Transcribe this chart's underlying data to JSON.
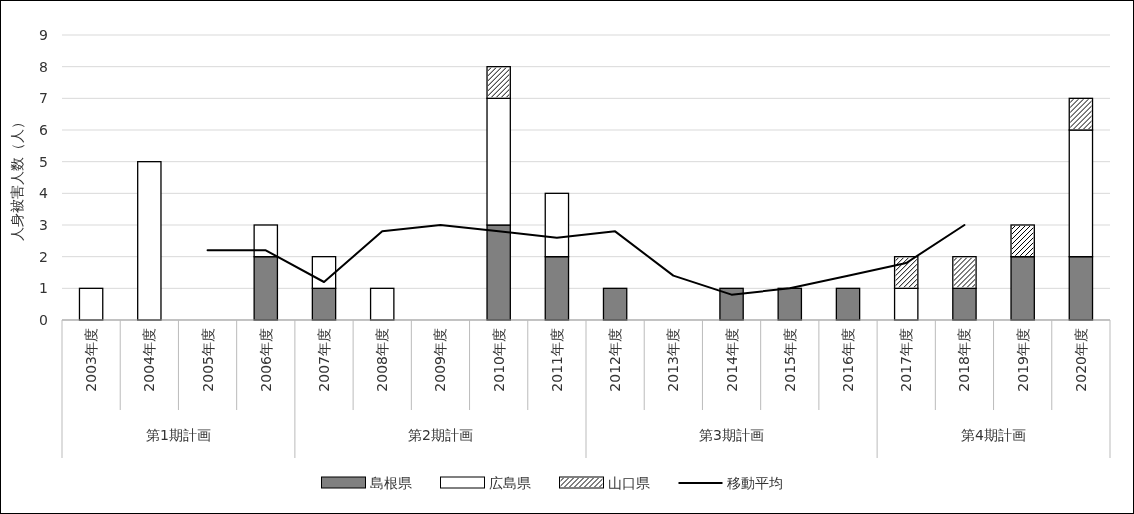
{
  "chart_data": {
    "type": "bar",
    "stacked": true,
    "ylabel": "人身被害人数（人）",
    "categories": [
      "2003年度",
      "2004年度",
      "2005年度",
      "2006年度",
      "2007年度",
      "2008年度",
      "2009年度",
      "2010年度",
      "2011年度",
      "2012年度",
      "2013年度",
      "2014年度",
      "2015年度",
      "2016年度",
      "2017年度",
      "2018年度",
      "2019年度",
      "2020年度"
    ],
    "series": [
      {
        "name": "島根県",
        "color": "#808080",
        "values": [
          0,
          0,
          0,
          2,
          1,
          0,
          0,
          3,
          2,
          1,
          0,
          1,
          1,
          1,
          0,
          1,
          2,
          2
        ]
      },
      {
        "name": "広島県",
        "color": "#ffffff",
        "values": [
          1,
          5,
          0,
          1,
          1,
          1,
          0,
          4,
          2,
          0,
          0,
          0,
          0,
          0,
          1,
          0,
          0,
          4
        ]
      },
      {
        "name": "山口県",
        "color": "#ffffff",
        "values": [
          0,
          0,
          0,
          0,
          0,
          0,
          0,
          1,
          0,
          0,
          0,
          0,
          0,
          0,
          1,
          1,
          1,
          1
        ]
      },
      {
        "name": "移動平均",
        "type": "line",
        "color": "#000000",
        "values": [
          null,
          null,
          2.2,
          2.2,
          1.2,
          2.8,
          3.0,
          2.8,
          2.6,
          2.8,
          1.4,
          0.8,
          1.0,
          1.4,
          1.8,
          3.0,
          null,
          null
        ]
      }
    ],
    "annotations": [
      "第1期計画",
      "第2期計画",
      "第3期計画",
      "第4期計画"
    ],
    "ylim": [
      0,
      9
    ],
    "yticks": [
      0,
      1,
      2,
      3,
      4,
      5,
      6,
      7,
      8,
      9
    ],
    "grid": "y",
    "legend": "bottom"
  }
}
